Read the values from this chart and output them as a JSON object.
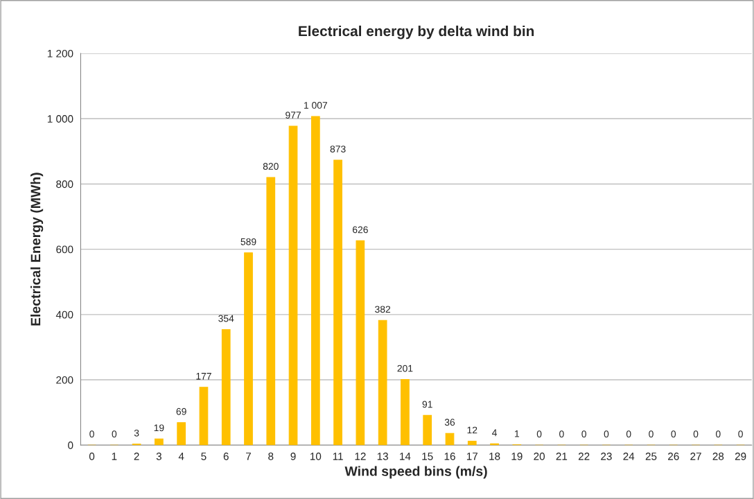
{
  "chart_data": {
    "type": "bar",
    "title": "Electrical energy by delta wind bin",
    "xlabel": "Wind speed bins (m/s)",
    "ylabel": "Electrical Energy (MWh)",
    "categories": [
      "0",
      "1",
      "2",
      "3",
      "4",
      "5",
      "6",
      "7",
      "8",
      "9",
      "10",
      "11",
      "12",
      "13",
      "14",
      "15",
      "16",
      "17",
      "18",
      "19",
      "20",
      "21",
      "22",
      "23",
      "24",
      "25",
      "26",
      "27",
      "28",
      "29"
    ],
    "values": [
      0,
      0,
      3,
      19,
      69,
      177,
      354,
      589,
      820,
      977,
      1007,
      873,
      626,
      382,
      201,
      91,
      36,
      12,
      4,
      1,
      0,
      0,
      0,
      0,
      0,
      0,
      0,
      0,
      0,
      0
    ],
    "value_labels": [
      "0",
      "0",
      "3",
      "19",
      "69",
      "177",
      "354",
      "589",
      "820",
      "977",
      "1 007",
      "873",
      "626",
      "382",
      "201",
      "91",
      "36",
      "12",
      "4",
      "1",
      "0",
      "0",
      "0",
      "0",
      "0",
      "0",
      "0",
      "0",
      "0",
      "0"
    ],
    "color": "#ffc000",
    "ylim": [
      0,
      1200
    ],
    "yticks": [
      0,
      200,
      400,
      600,
      800,
      {
        "value": 1000,
        "label": "1 000"
      },
      {
        "value": 1200,
        "label": "1 200"
      }
    ],
    "grid": "y",
    "legend": false
  }
}
